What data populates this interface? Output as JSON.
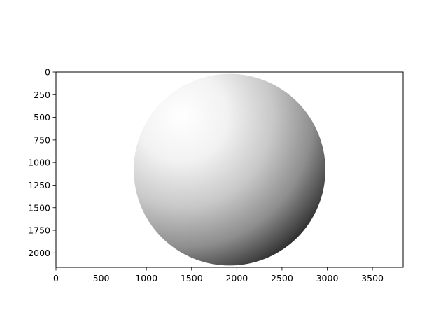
{
  "chart_data": {
    "type": "image",
    "content": "shaded sphere",
    "colormap": "gray",
    "image_extent": {
      "width": 3840,
      "height": 2160
    },
    "xlim": [
      0,
      3840
    ],
    "ylim": [
      2160,
      0
    ],
    "y_inverted": true,
    "x_ticks": [
      0,
      500,
      1000,
      1500,
      2000,
      2500,
      3000,
      3500
    ],
    "y_ticks": [
      0,
      250,
      500,
      750,
      1000,
      1250,
      1500,
      1750,
      2000
    ],
    "x_tick_labels": [
      "0",
      "500",
      "1000",
      "1500",
      "2000",
      "2500",
      "3000",
      "3500"
    ],
    "y_tick_labels": [
      "0",
      "250",
      "500",
      "750",
      "1000",
      "1250",
      "1500",
      "1750",
      "2000"
    ],
    "sphere": {
      "center_x": 1920,
      "center_y": 1080,
      "radius": 1060
    },
    "light_direction": "upper-left",
    "colors": {
      "highlight": "#ffffff",
      "shadow": "#000000",
      "background": "#ffffff"
    },
    "grid": false,
    "title": "",
    "xlabel": "",
    "ylabel": ""
  }
}
